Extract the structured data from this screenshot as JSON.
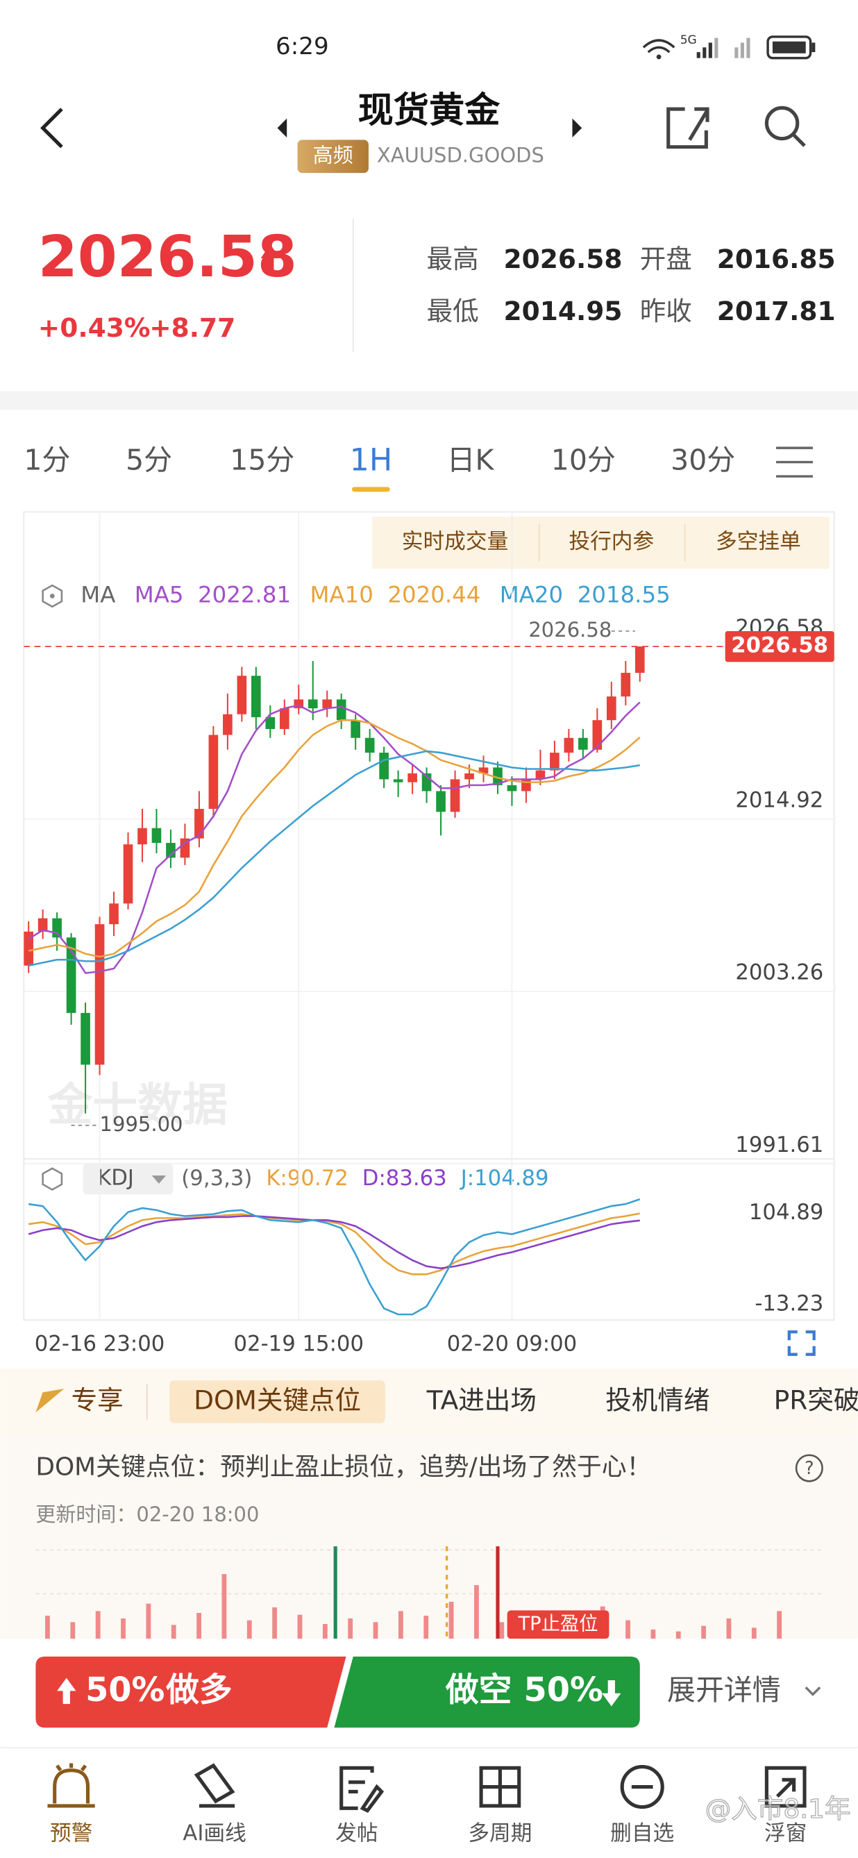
{
  "status_bar": {
    "time": "6:29",
    "network": "5G"
  },
  "header": {
    "title": "现货黄金",
    "badge": "高频",
    "symbol": "XAUUSD.GOODS"
  },
  "quote": {
    "price": "2026.58",
    "change_pct": "+0.43%",
    "change": "+8.77",
    "stats": [
      {
        "label": "最高",
        "value": "2026.58"
      },
      {
        "label": "开盘",
        "value": "2016.85"
      },
      {
        "label": "最低",
        "value": "2014.95"
      },
      {
        "label": "昨收",
        "value": "2017.81"
      }
    ]
  },
  "tabs": [
    "1分",
    "5分",
    "15分",
    "1H",
    "日K",
    "10分",
    "30分"
  ],
  "chart_buttons": [
    "实时成交量",
    "投行内参",
    "多空挂单"
  ],
  "watermark": "金十数据",
  "chart_data": {
    "type": "candlestick",
    "indicator": "MA",
    "categories": [
      null,
      null,
      null,
      null,
      null,
      "02-16 23:00",
      null,
      null,
      null,
      null,
      null,
      null,
      null,
      null,
      null,
      null,
      null,
      null,
      null,
      "02-19 15:00",
      null,
      null,
      null,
      null,
      null,
      null,
      null,
      null,
      null,
      null,
      null,
      null,
      null,
      null,
      "02-20 09:00",
      null,
      null,
      null,
      null,
      null,
      null,
      null,
      null,
      null
    ],
    "open": [
      2005.0,
      2007.3,
      2008.2,
      2006.9,
      2001.8,
      1998.3,
      2007.8,
      2009.2,
      2013.2,
      2014.3,
      2013.3,
      2012.3,
      2013.6,
      2015.6,
      2020.6,
      2022.0,
      2024.6,
      2021.8,
      2021.0,
      2022.4,
      2023.0,
      2022.4,
      2023.0,
      2021.6,
      2020.4,
      2019.4,
      2017.6,
      2017.4,
      2018.0,
      2016.8,
      2015.4,
      2017.6,
      2018.0,
      2018.4,
      2017.2,
      2016.8,
      2017.6,
      2018.2,
      2019.4,
      2020.4,
      2019.6,
      2021.6,
      2023.2,
      2024.8
    ],
    "high": [
      2008.0,
      2008.8,
      2008.6,
      2007.2,
      2002.5,
      2008.3,
      2010.0,
      2014.0,
      2015.6,
      2015.6,
      2014.2,
      2014.6,
      2016.8,
      2021.2,
      2023.4,
      2025.2,
      2025.2,
      2022.6,
      2023.0,
      2024.0,
      2025.6,
      2023.6,
      2023.4,
      2022.0,
      2021.0,
      2019.8,
      2018.2,
      2018.6,
      2018.4,
      2017.2,
      2018.2,
      2018.6,
      2019.2,
      2018.8,
      2017.8,
      2018.4,
      2019.6,
      2020.2,
      2021.0,
      2021.0,
      2022.4,
      2024.2,
      2025.6,
      2026.58
    ],
    "low": [
      2004.5,
      2006.8,
      2006.0,
      2001.0,
      1995.0,
      1997.6,
      2007.0,
      2008.8,
      2012.0,
      2012.6,
      2011.6,
      2011.8,
      2013.0,
      2015.0,
      2019.6,
      2021.5,
      2021.0,
      2020.4,
      2020.6,
      2022.0,
      2021.6,
      2021.8,
      2021.0,
      2019.6,
      2018.8,
      2017.0,
      2016.4,
      2016.6,
      2016.0,
      2013.8,
      2015.0,
      2017.0,
      2017.4,
      2016.6,
      2015.8,
      2016.0,
      2017.2,
      2017.6,
      2018.8,
      2019.0,
      2019.4,
      2021.0,
      2022.6,
      2024.2
    ],
    "close": [
      2007.3,
      2008.2,
      2006.9,
      2001.8,
      1998.3,
      2007.8,
      2009.2,
      2013.2,
      2014.3,
      2013.3,
      2012.3,
      2013.6,
      2015.6,
      2020.6,
      2022.0,
      2024.6,
      2021.8,
      2021.0,
      2022.4,
      2023.0,
      2022.4,
      2023.0,
      2021.6,
      2020.4,
      2019.4,
      2017.6,
      2017.4,
      2018.0,
      2016.8,
      2015.4,
      2017.6,
      2018.0,
      2018.4,
      2017.2,
      2016.8,
      2017.6,
      2018.2,
      2019.4,
      2020.4,
      2019.6,
      2021.6,
      2023.2,
      2024.8,
      2026.58
    ],
    "up_color": "#e8413a",
    "down_color": "#1a9a3a",
    "ylim": [
      1991.61,
      2034.0
    ],
    "yticks": [
      2026.58,
      2014.92,
      2003.26,
      1991.61
    ],
    "low_label": "1995.00",
    "series": [
      {
        "name": "MA5",
        "color": "#a24fc9",
        "values": [
          2006.8,
          2007.4,
          2007.2,
          2006.0,
          2004.5,
          2004.6,
          2004.8,
          2006.1,
          2008.6,
          2011.6,
          2012.5,
          2013.3,
          2013.8,
          2015.1,
          2016.8,
          2019.3,
          2020.9,
          2022.0,
          2022.4,
          2022.6,
          2022.1,
          2022.4,
          2022.5,
          2022.1,
          2021.4,
          2020.4,
          2019.3,
          2018.6,
          2017.8,
          2017.0,
          2017.0,
          2017.2,
          2017.2,
          2017.3,
          2017.6,
          2017.6,
          2017.6,
          2017.8,
          2018.5,
          2019.0,
          2019.8,
          2020.8,
          2021.9,
          2022.81
        ]
      },
      {
        "name": "MA10",
        "color": "#e8a23a",
        "values": [
          2006.0,
          2006.2,
          2006.4,
          2006.2,
          2005.8,
          2005.6,
          2005.8,
          2006.5,
          2007.2,
          2008.0,
          2008.5,
          2009.1,
          2010.0,
          2011.8,
          2013.4,
          2015.1,
          2016.3,
          2017.4,
          2018.4,
          2019.6,
          2020.6,
          2021.2,
          2021.6,
          2021.6,
          2021.4,
          2020.9,
          2020.4,
          2020.0,
          2019.5,
          2018.9,
          2018.6,
          2018.3,
          2018.0,
          2017.7,
          2017.5,
          2017.4,
          2017.4,
          2017.5,
          2017.8,
          2018.0,
          2018.4,
          2018.9,
          2019.6,
          2020.44
        ]
      },
      {
        "name": "MA20",
        "color": "#3b9fd1",
        "values": [
          2005.0,
          2005.2,
          2005.4,
          2005.4,
          2005.3,
          2005.3,
          2005.6,
          2006.0,
          2006.5,
          2007.0,
          2007.5,
          2008.1,
          2008.8,
          2009.6,
          2010.6,
          2011.6,
          2012.5,
          2013.4,
          2014.2,
          2015.0,
          2015.8,
          2016.5,
          2017.2,
          2017.9,
          2018.4,
          2018.9,
          2019.1,
          2019.3,
          2019.5,
          2019.4,
          2019.2,
          2019.0,
          2018.8,
          2018.6,
          2018.4,
          2018.3,
          2018.3,
          2018.3,
          2018.3,
          2018.2,
          2018.2,
          2018.3,
          2018.4,
          2018.55
        ]
      }
    ],
    "kdj": {
      "name": "KDJ",
      "params": "(9,3,3)",
      "ylim": [
        -13.23,
        104.89
      ],
      "yticks": [
        104.89,
        -13.23
      ],
      "series": [
        {
          "name": "K:",
          "color": "#e8a23a",
          "values": [
            80,
            82,
            78,
            70,
            60,
            62,
            70,
            78,
            84,
            86,
            86,
            86,
            87,
            88,
            89,
            90,
            88,
            86,
            85,
            84,
            84,
            83,
            80,
            72,
            58,
            44,
            34,
            30,
            30,
            34,
            42,
            48,
            53,
            56,
            58,
            62,
            66,
            70,
            74,
            78,
            82,
            86,
            88,
            90.72
          ]
        },
        {
          "name": "D:",
          "color": "#8a3fc8",
          "values": [
            70,
            74,
            76,
            74,
            68,
            64,
            66,
            72,
            78,
            82,
            84,
            85,
            86,
            87,
            87,
            88,
            88,
            87,
            86,
            85,
            84,
            84,
            82,
            78,
            70,
            61,
            52,
            44,
            38,
            36,
            38,
            41,
            45,
            49,
            52,
            56,
            60,
            64,
            68,
            72,
            76,
            80,
            82,
            83.63
          ]
        },
        {
          "name": "J:",
          "color": "#3b9fd1",
          "values": [
            100,
            98,
            82,
            62,
            44,
            58,
            78,
            92,
            96,
            94,
            90,
            88,
            89,
            90,
            93,
            94,
            88,
            84,
            83,
            82,
            84,
            81,
            76,
            50,
            20,
            -4,
            -10,
            -10,
            -2,
            22,
            48,
            62,
            69,
            72,
            70,
            74,
            78,
            82,
            86,
            90,
            94,
            98,
            100,
            104.89
          ]
        }
      ]
    }
  },
  "analysis_tabs": [
    "专享",
    "DOM关键点位",
    "TA进出场",
    "投机情绪",
    "PR突破"
  ],
  "dom": {
    "title": "DOM关键点位：预判止盈止损位，追势/出场了然于心！",
    "updated": "更新时间：02-20 18:00",
    "tp_label": "TP止盈位",
    "ylim": [
      0,
      100
    ],
    "levels": [
      25,
      18,
      30,
      22,
      38,
      15,
      28,
      70,
      20,
      34,
      26,
      16,
      22,
      18,
      30,
      25,
      40,
      58,
      18,
      28,
      12,
      30,
      35,
      20,
      10,
      8,
      14,
      22,
      12,
      30
    ]
  },
  "trade": {
    "long_pct": "50%",
    "long_label": "做多",
    "short_label": "做空",
    "short_pct": "50%",
    "details": "展开详情"
  },
  "nav": [
    "预警",
    "AI画线",
    "发帖",
    "多周期",
    "删自选",
    "浮窗"
  ],
  "credit": "@入市8.1年"
}
